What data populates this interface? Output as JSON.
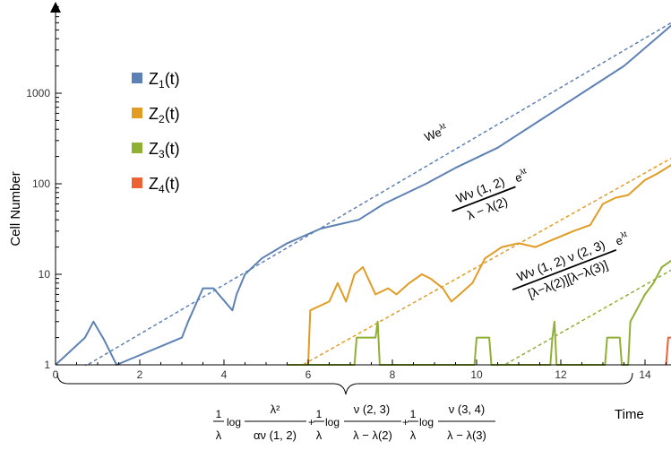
{
  "chart_data": {
    "type": "line",
    "xlabel": "Time",
    "ylabel": "Cell Number",
    "xlim": [
      0,
      15
    ],
    "ylim": [
      1,
      9000
    ],
    "yscale": "log",
    "x_ticks": [
      0,
      2,
      4,
      6,
      8,
      10,
      12,
      14
    ],
    "y_ticks": [
      1,
      10,
      100,
      1000
    ],
    "legend_position": "top-left",
    "colors": {
      "Z1": "#5e81b5",
      "Z2": "#e19c24",
      "Z3": "#8fb032",
      "Z4": "#eb6235",
      "axis": "#000000",
      "text": "#000000"
    },
    "series": [
      {
        "name": "Z1(t)",
        "name_base": "Z",
        "name_sub": "1",
        "name_arg": "(t)",
        "color_key": "Z1",
        "x": [
          0,
          0.7,
          0.9,
          1.15,
          1.45,
          3.0,
          3.15,
          3.5,
          3.75,
          4.2,
          4.3,
          4.5,
          4.9,
          5.5,
          6.3,
          7.2,
          7.8,
          8.8,
          9.5,
          10.5,
          11.5,
          12.5,
          13.5,
          14.5,
          15.0
        ],
        "values": [
          1,
          2,
          3,
          1.9,
          1,
          2,
          3,
          7,
          7,
          4,
          6,
          10,
          15,
          22,
          32,
          40,
          60,
          100,
          150,
          250,
          500,
          1000,
          2000,
          5000,
          8000
        ]
      },
      {
        "name": "Z2(t)",
        "name_base": "Z",
        "name_sub": "2",
        "name_arg": "(t)",
        "color_key": "Z2",
        "x": [
          6.0,
          6.05,
          6.5,
          6.7,
          6.9,
          7.1,
          7.3,
          7.6,
          7.9,
          8.1,
          8.4,
          8.7,
          8.9,
          9.2,
          9.4,
          9.6,
          9.9,
          10.2,
          10.6,
          11.0,
          11.4,
          11.8,
          12.3,
          12.7,
          13.0,
          13.3,
          13.6,
          14.0,
          14.3,
          14.7,
          15.0
        ],
        "values": [
          1,
          4,
          5,
          8,
          5,
          10,
          12,
          6,
          7,
          6,
          8,
          10,
          9,
          7,
          5,
          6,
          8,
          15,
          20,
          22,
          20,
          24,
          30,
          35,
          60,
          70,
          75,
          110,
          130,
          170,
          230
        ]
      },
      {
        "name": "Z3(t)",
        "name_base": "Z",
        "name_sub": "3",
        "name_arg": "(t)",
        "color_key": "Z3",
        "x": [
          5.5,
          7.1,
          7.15,
          7.6,
          7.65,
          7.7,
          9.95,
          10.0,
          10.3,
          10.35,
          11.75,
          11.8,
          11.85,
          11.9,
          13.05,
          13.1,
          13.4,
          13.45,
          13.6,
          13.65,
          14.0,
          14.2,
          14.4,
          14.7,
          15.0
        ],
        "values": [
          1,
          1,
          2,
          2,
          3,
          1,
          1,
          2,
          2,
          1,
          1,
          2,
          3,
          1,
          1,
          2,
          2,
          1,
          1,
          3,
          6,
          8,
          12,
          15,
          20
        ]
      },
      {
        "name": "Z4(t)",
        "name_base": "Z",
        "name_sub": "4",
        "name_arg": "(t)",
        "color_key": "Z4",
        "x": [
          14.5,
          14.55,
          14.7,
          14.75,
          14.9,
          15.0
        ],
        "values": [
          1,
          2,
          2,
          4,
          4,
          6
        ]
      }
    ],
    "reference_lines": [
      {
        "color_key": "Z1",
        "x": [
          0.4,
          15.0
        ],
        "values": [
          0.8,
          7600
        ]
      },
      {
        "color_key": "Z2",
        "x": [
          5.5,
          15.0
        ],
        "values": [
          0.8,
          240
        ]
      },
      {
        "color_key": "Z3",
        "x": [
          10.3,
          15.0
        ],
        "values": [
          0.8,
          14
        ]
      }
    ],
    "annotations": {
      "z1": {
        "base": "We",
        "exp": "λt"
      },
      "z2": {
        "num": "Wν (1, 2)",
        "den": "λ − λ(2)",
        "exp_base": "e",
        "exp": "λt"
      },
      "z3": {
        "num": "Wν (1, 2) ν (2, 3)",
        "den": "[λ−λ(2)][λ−λ(3)]",
        "exp_base": "e",
        "exp": "λt"
      }
    },
    "formula": {
      "t1_num": "1",
      "t1_den": "λ",
      "t1_log": "log",
      "t1_arg_num": "λ²",
      "t1_arg_den": "αν (1, 2)",
      "plus1": "+",
      "t2_num": "1",
      "t2_den": "λ",
      "t2_log": "log",
      "t2_arg_num": "ν (2, 3)",
      "t2_arg_den": "λ − λ(2)",
      "plus2": "+",
      "t3_num": "1",
      "t3_den": "λ",
      "t3_log": "log",
      "t3_arg_num": "ν (3, 4)",
      "t3_arg_den": "λ − λ(3)"
    }
  }
}
